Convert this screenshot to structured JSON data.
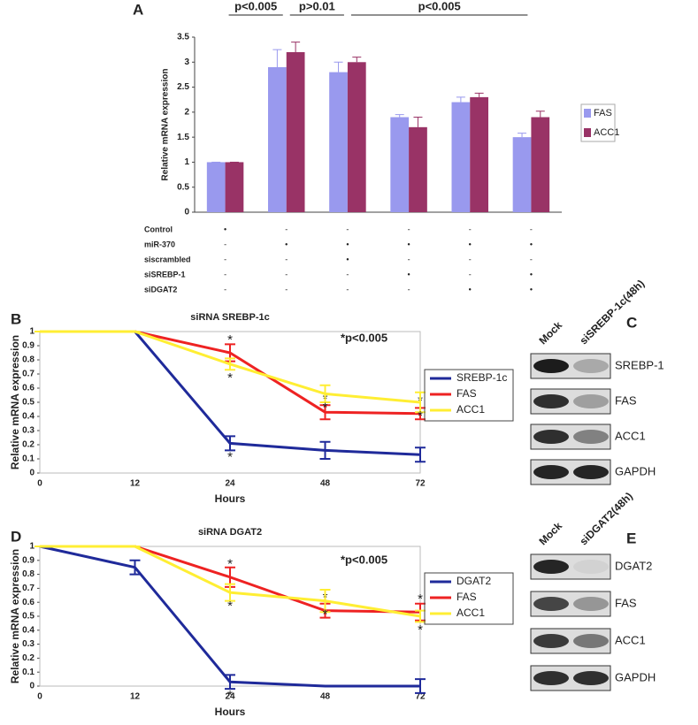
{
  "chart_data": [
    {
      "type": "bar",
      "panel": "A",
      "ylabel": "Relative mRNA expression",
      "categories": [
        null,
        null,
        null,
        null,
        null,
        null
      ],
      "series": [
        {
          "name": "FAS",
          "color": "#9999ee",
          "values": [
            1,
            2.9,
            2.8,
            1.9,
            2.2,
            1.5
          ],
          "errors": [
            0,
            0.35,
            0.2,
            0.05,
            0.1,
            0.08
          ]
        },
        {
          "name": "ACC1",
          "color": "#993366",
          "values": [
            1,
            3.2,
            3.0,
            1.7,
            2.3,
            1.9
          ],
          "errors": [
            0,
            0.2,
            0.1,
            0.2,
            0.08,
            0.12
          ]
        }
      ],
      "ylim": [
        0,
        3.5
      ],
      "yticks": [
        0,
        0.5,
        1,
        1.5,
        2,
        2.5,
        3,
        3.5
      ],
      "significance": [
        "p<0.005",
        "p>0.01",
        "p<0.005"
      ],
      "treatments": [
        {
          "name": "Control",
          "marks": [
            "•",
            "-",
            "-",
            "-",
            "-",
            "-"
          ]
        },
        {
          "name": "miR-370",
          "marks": [
            "-",
            "•",
            "•",
            "•",
            "•",
            "•"
          ]
        },
        {
          "name": "siscrambled",
          "marks": [
            "-",
            "-",
            "•",
            "-",
            "-",
            "-"
          ]
        },
        {
          "name": "siSREBP-1",
          "marks": [
            "-",
            "-",
            "-",
            "•",
            "-",
            "•"
          ]
        },
        {
          "name": "siDGAT2",
          "marks": [
            "-",
            "-",
            "-",
            "-",
            "•",
            "•"
          ]
        }
      ]
    },
    {
      "type": "line",
      "panel": "B",
      "title": "siRNA SREBP-1c",
      "xlabel": "Hours",
      "ylabel": "Relative mRNA expression",
      "categories": [
        "0",
        "12",
        "24",
        "48",
        "72"
      ],
      "series": [
        {
          "name": "SREBP-1c",
          "color": "#1f2a9a",
          "values": [
            1,
            1,
            0.21,
            0.16,
            0.13
          ],
          "errors": [
            0,
            0,
            0.05,
            0.06,
            0.05
          ]
        },
        {
          "name": "FAS",
          "color": "#ee2222",
          "values": [
            1,
            1,
            0.85,
            0.43,
            0.42
          ],
          "errors": [
            0,
            0,
            0.06,
            0.05,
            0.04
          ]
        },
        {
          "name": "ACC1",
          "color": "#ffee33",
          "values": [
            1,
            1,
            0.77,
            0.56,
            0.5
          ],
          "errors": [
            0,
            0,
            0.04,
            0.06,
            0.07
          ]
        }
      ],
      "ylim": [
        0,
        1
      ],
      "yticks": [
        0,
        0.1,
        0.2,
        0.3,
        0.4,
        0.5,
        0.6,
        0.7,
        0.8,
        0.9,
        1
      ],
      "annotation": "*p<0.005",
      "star": "*"
    },
    {
      "type": "line",
      "panel": "D",
      "title": "siRNA DGAT2",
      "xlabel": "Hours",
      "ylabel": "Relative mRNA expression",
      "categories": [
        "0",
        "12",
        "24",
        "48",
        "72"
      ],
      "series": [
        {
          "name": "DGAT2",
          "color": "#1f2a9a",
          "values": [
            1,
            0.85,
            0.03,
            0,
            0
          ],
          "errors": [
            0,
            0.05,
            0.05,
            0,
            0.05
          ]
        },
        {
          "name": "FAS",
          "color": "#ee2222",
          "values": [
            1,
            1,
            0.78,
            0.54,
            0.53
          ],
          "errors": [
            0,
            0,
            0.07,
            0.05,
            0.06
          ]
        },
        {
          "name": "ACC1",
          "color": "#ffee33",
          "values": [
            1,
            1,
            0.67,
            0.61,
            0.5
          ],
          "errors": [
            0,
            0,
            0.06,
            0.08,
            0.04
          ]
        }
      ],
      "ylim": [
        0,
        1
      ],
      "yticks": [
        0,
        0.1,
        0.2,
        0.3,
        0.4,
        0.5,
        0.6,
        0.7,
        0.8,
        0.9,
        1
      ],
      "annotation": "*p<0.005",
      "star": "*"
    }
  ],
  "blots": [
    {
      "panel": "C",
      "columns": [
        "Mock",
        "siSREBP-1c(48h)"
      ],
      "rows": [
        "SREBP-1",
        "FAS",
        "ACC1",
        "GAPDH"
      ]
    },
    {
      "panel": "E",
      "columns": [
        "Mock",
        "siDGAT2(48h)"
      ],
      "rows": [
        "DGAT2",
        "FAS",
        "ACC1",
        "GAPDH"
      ]
    }
  ]
}
